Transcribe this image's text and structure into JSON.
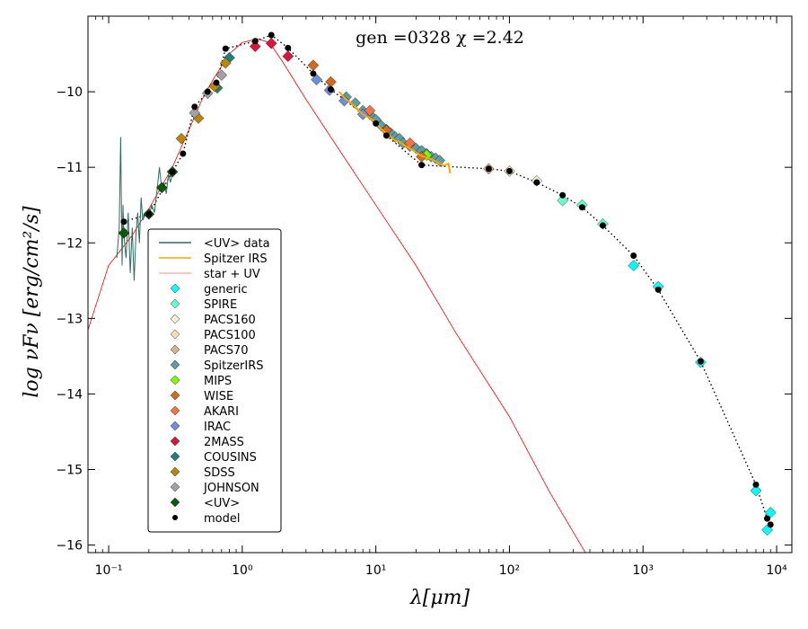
{
  "chart_data": {
    "type": "scatter",
    "title": "",
    "annotation": "gen =0328  χ =2.42",
    "xlabel": "λ[μm]",
    "ylabel": "log νFν [erg/cm²/s]",
    "xscale": "log",
    "xlim": [
      0.07,
      13000
    ],
    "ylim": [
      -16.1,
      -9.0
    ],
    "x_ticks": [
      {
        "value": 0.1,
        "label": "10⁻¹"
      },
      {
        "value": 1,
        "label": "10⁰"
      },
      {
        "value": 10,
        "label": "10¹"
      },
      {
        "value": 100,
        "label": "10²"
      },
      {
        "value": 1000,
        "label": "10³"
      },
      {
        "value": 10000,
        "label": "10⁴"
      }
    ],
    "y_ticks": [
      {
        "value": -10,
        "label": "−10"
      },
      {
        "value": -11,
        "label": "−11"
      },
      {
        "value": -12,
        "label": "−12"
      },
      {
        "value": -13,
        "label": "−13"
      },
      {
        "value": -14,
        "label": "−14"
      },
      {
        "value": -15,
        "label": "−15"
      },
      {
        "value": -16,
        "label": "−16"
      }
    ],
    "legend_position": "lower-left",
    "legend": [
      {
        "label": "<UV> data",
        "kind": "line",
        "color": "#2e6b5e"
      },
      {
        "label": "Spitzer IRS",
        "kind": "line",
        "color": "#ffa500"
      },
      {
        "label": "star + UV",
        "kind": "line",
        "color": "#ffb0b0"
      },
      {
        "label": "generic",
        "kind": "diamond",
        "color": "#00ffff"
      },
      {
        "label": "SPIRE",
        "kind": "diamond",
        "color": "#66ffcc"
      },
      {
        "label": "PACS160",
        "kind": "diamond",
        "color": "#f0f0d0"
      },
      {
        "label": "PACS100",
        "kind": "diamond",
        "color": "#f5deb3"
      },
      {
        "label": "PACS70",
        "kind": "diamond",
        "color": "#d2b48c"
      },
      {
        "label": "SpitzerIRS",
        "kind": "diamond",
        "color": "#5f9ea0"
      },
      {
        "label": "MIPS",
        "kind": "diamond",
        "color": "#7cfc00"
      },
      {
        "label": "WISE",
        "kind": "diamond",
        "color": "#d2691e"
      },
      {
        "label": "AKARI",
        "kind": "diamond",
        "color": "#f4733f"
      },
      {
        "label": "IRAC",
        "kind": "diamond",
        "color": "#6a8fe0"
      },
      {
        "label": "2MASS",
        "kind": "diamond",
        "color": "#dc143c"
      },
      {
        "label": "COUSINS",
        "kind": "diamond",
        "color": "#1f8080"
      },
      {
        "label": "SDSS",
        "kind": "diamond",
        "color": "#b8860b"
      },
      {
        "label": "JOHNSON",
        "kind": "diamond",
        "color": "#a0a0a8"
      },
      {
        "label": "<UV>",
        "kind": "diamond",
        "color": "#0b5a0b"
      },
      {
        "label": "model",
        "kind": "dot",
        "color": "#000000"
      }
    ],
    "star_uv_curve": {
      "color": "#ff0000",
      "x": [
        0.07,
        0.1,
        0.15,
        0.2,
        0.3,
        0.4,
        0.5,
        0.6,
        0.8,
        1.0,
        1.3,
        1.6,
        2.0,
        3.0,
        5.0,
        10.0,
        20.0,
        40.0,
        100.0,
        200.0,
        400.0
      ],
      "y": [
        -13.15,
        -12.3,
        -11.9,
        -11.55,
        -11.0,
        -10.5,
        -10.1,
        -9.85,
        -9.5,
        -9.35,
        -9.3,
        -9.35,
        -9.6,
        -10.1,
        -10.7,
        -11.5,
        -12.3,
        -13.2,
        -14.3,
        -15.3,
        -16.2
      ]
    },
    "uv_data_curve": {
      "color": "#2e6b5e",
      "x": [
        0.115,
        0.12,
        0.123,
        0.126,
        0.128,
        0.13,
        0.135,
        0.14,
        0.145,
        0.15,
        0.155,
        0.16,
        0.165,
        0.17,
        0.175,
        0.18,
        0.19,
        0.2,
        0.21,
        0.22,
        0.23,
        0.24,
        0.25,
        0.26,
        0.27,
        0.28,
        0.29,
        0.3
      ],
      "y": [
        -12.2,
        -11.8,
        -10.6,
        -12.3,
        -11.5,
        -11.9,
        -12.2,
        -11.6,
        -12.4,
        -11.8,
        -12.5,
        -11.9,
        -11.6,
        -12.0,
        -11.4,
        -11.7,
        -11.6,
        -11.65,
        -11.5,
        -11.6,
        -11.3,
        -11.0,
        -11.3,
        -11.2,
        -11.35,
        -11.1,
        -11.2,
        -11.05
      ]
    },
    "spitzer_irs_curve": {
      "color": "#ffa500",
      "x": [
        5.3,
        6,
        7,
        8,
        9,
        10,
        11,
        12,
        13,
        14,
        15,
        16,
        18,
        20,
        22,
        25,
        28,
        30,
        32,
        35,
        36
      ],
      "y": [
        -10.0,
        -10.1,
        -10.2,
        -10.3,
        -10.35,
        -10.4,
        -10.5,
        -10.55,
        -10.6,
        -10.65,
        -10.66,
        -10.7,
        -10.75,
        -10.8,
        -10.85,
        -10.88,
        -10.92,
        -10.95,
        -10.98,
        -10.95,
        -11.08
      ]
    },
    "model_curve": {
      "color": "#000000",
      "x": [
        0.13,
        0.2,
        0.3,
        0.36,
        0.44,
        0.55,
        0.64,
        0.75,
        1.25,
        1.65,
        2.2,
        3.4,
        4.6,
        10,
        12,
        22,
        70,
        100,
        160,
        250,
        350,
        500,
        850,
        1300,
        2700,
        7000,
        8500,
        9000
      ],
      "y": [
        -11.72,
        -11.62,
        -11.06,
        -10.82,
        -10.2,
        -10.0,
        -9.88,
        -9.43,
        -9.33,
        -9.25,
        -9.42,
        -9.76,
        -9.97,
        -10.42,
        -10.58,
        -10.97,
        -11.02,
        -11.05,
        -11.2,
        -11.37,
        -11.53,
        -11.77,
        -12.17,
        -12.62,
        -13.57,
        -15.2,
        -15.65,
        -15.73
      ]
    },
    "series": [
      {
        "name": "generic",
        "color": "#00ffff",
        "x": [
          850,
          1300,
          2700,
          7000,
          8500,
          9000
        ],
        "y": [
          -12.3,
          -12.58,
          -13.58,
          -15.28,
          -15.8,
          -15.57
        ]
      },
      {
        "name": "SPIRE",
        "color": "#66ffcc",
        "x": [
          250,
          350,
          500
        ],
        "y": [
          -11.44,
          -11.5,
          -11.75
        ]
      },
      {
        "name": "PACS160",
        "color": "#f0f0d0",
        "x": [
          160
        ],
        "y": [
          -11.18
        ]
      },
      {
        "name": "PACS100",
        "color": "#f5deb3",
        "x": [
          100
        ],
        "y": [
          -11.05
        ]
      },
      {
        "name": "PACS70",
        "color": "#d2b48c",
        "x": [
          70
        ],
        "y": [
          -11.02
        ]
      },
      {
        "name": "SpitzerIRS",
        "color": "#5f9ea0",
        "x": [
          6,
          7,
          8,
          9,
          10,
          11,
          12,
          13,
          14,
          15,
          16,
          18,
          20,
          22,
          24,
          26,
          28,
          30
        ],
        "y": [
          -10.07,
          -10.15,
          -10.25,
          -10.3,
          -10.37,
          -10.45,
          -10.5,
          -10.55,
          -10.6,
          -10.62,
          -10.68,
          -10.72,
          -10.75,
          -10.78,
          -10.82,
          -10.86,
          -10.88,
          -10.91
        ]
      },
      {
        "name": "MIPS",
        "color": "#7cfc00",
        "x": [
          24
        ],
        "y": [
          -10.84
        ]
      },
      {
        "name": "WISE",
        "color": "#d2691e",
        "x": [
          3.4,
          4.6,
          12,
          22
        ],
        "y": [
          -9.65,
          -9.87,
          -10.51,
          -10.86
        ]
      },
      {
        "name": "AKARI",
        "color": "#f4733f",
        "x": [
          9,
          18
        ],
        "y": [
          -10.25,
          -10.68
        ]
      },
      {
        "name": "IRAC",
        "color": "#6a8fe0",
        "x": [
          3.6,
          4.5,
          5.8,
          8.0
        ],
        "y": [
          -9.84,
          -9.98,
          -10.12,
          -10.3
        ]
      },
      {
        "name": "2MASS",
        "color": "#dc143c",
        "x": [
          1.25,
          1.65,
          2.2
        ],
        "y": [
          -9.4,
          -9.36,
          -9.53
        ]
      },
      {
        "name": "COUSINS",
        "color": "#1f8080",
        "x": [
          0.65,
          0.8
        ],
        "y": [
          -9.95,
          -9.55
        ]
      },
      {
        "name": "SDSS",
        "color": "#b8860b",
        "x": [
          0.35,
          0.47,
          0.62,
          0.75
        ],
        "y": [
          -10.62,
          -10.35,
          -9.93,
          -9.62
        ]
      },
      {
        "name": "JOHNSON",
        "color": "#a0a0a8",
        "x": [
          0.44,
          0.55,
          0.7
        ],
        "y": [
          -10.28,
          -10.02,
          -9.78
        ]
      },
      {
        "name": "<UV>",
        "color": "#0b5a0b",
        "x": [
          0.13,
          0.2,
          0.25,
          0.3
        ],
        "y": [
          -11.87,
          -11.62,
          -11.27,
          -11.06
        ]
      }
    ],
    "model_points": {
      "name": "model",
      "color": "#000000",
      "x": [
        0.13,
        0.2,
        0.3,
        0.36,
        0.44,
        0.55,
        0.64,
        0.75,
        1.25,
        1.65,
        2.2,
        3.4,
        4.6,
        10,
        12,
        22,
        70,
        100,
        160,
        250,
        350,
        500,
        850,
        1300,
        2700,
        7000,
        8500,
        9000
      ],
      "y": [
        -11.72,
        -11.62,
        -11.06,
        -10.82,
        -10.2,
        -10.0,
        -9.88,
        -9.43,
        -9.33,
        -9.25,
        -9.42,
        -9.76,
        -9.97,
        -10.42,
        -10.58,
        -10.97,
        -11.02,
        -11.05,
        -11.2,
        -11.37,
        -11.53,
        -11.77,
        -12.17,
        -12.62,
        -13.57,
        -15.2,
        -15.65,
        -15.73
      ]
    }
  }
}
